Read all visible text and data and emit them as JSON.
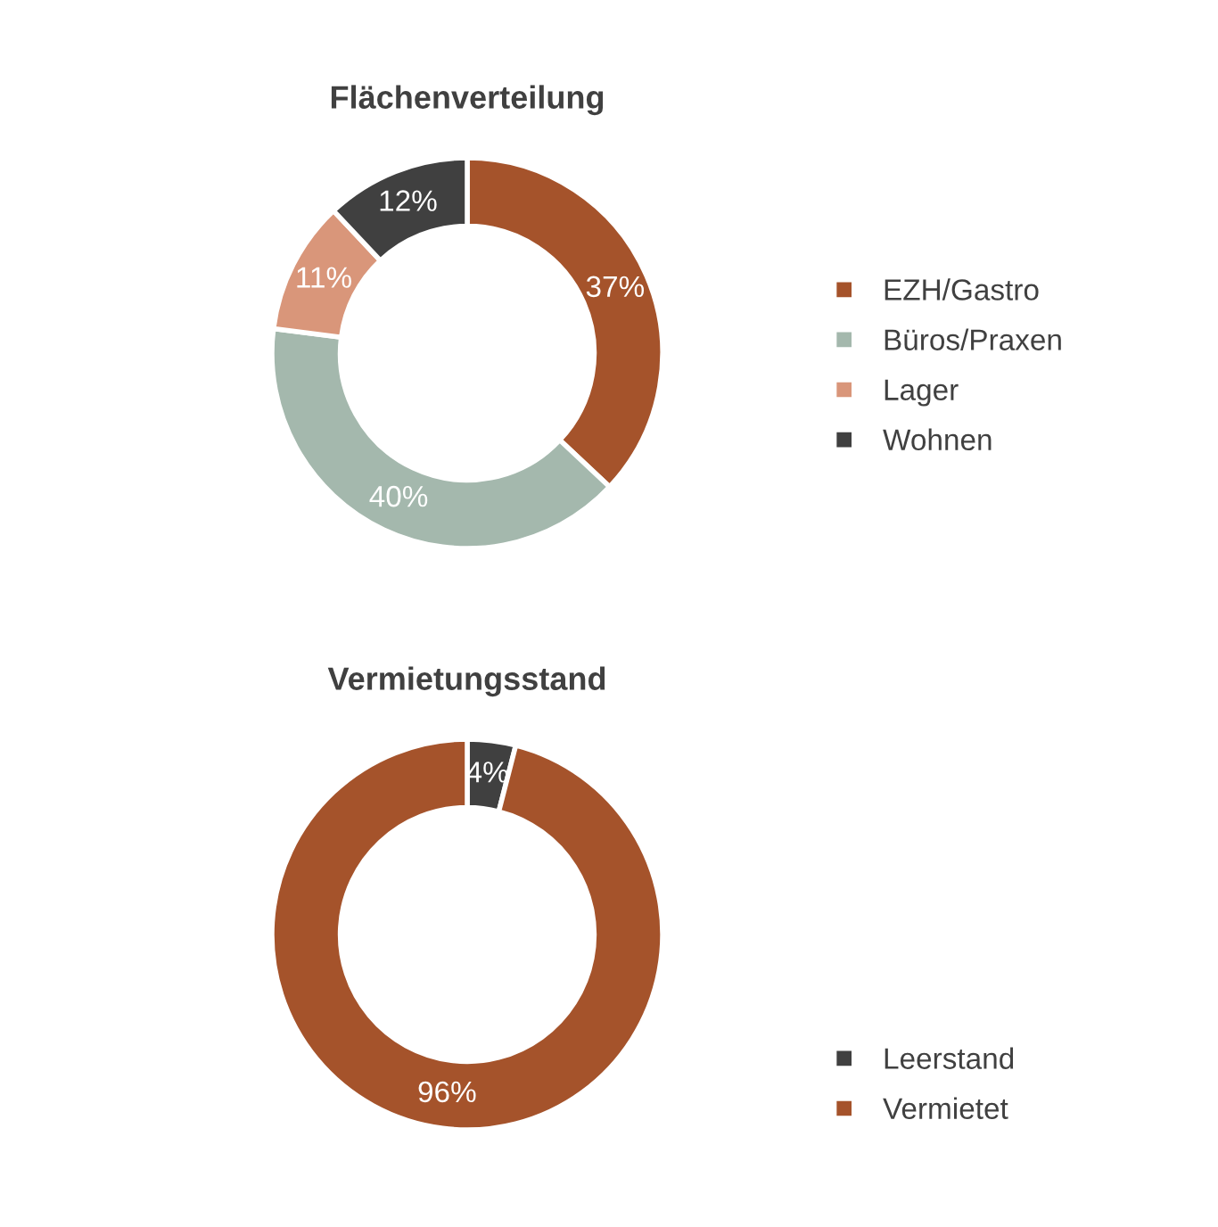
{
  "chart_data": [
    {
      "type": "donut",
      "title": "Flächenverteilung",
      "categories": [
        "EZH/Gastro",
        "Büros/Praxen",
        "Lager",
        "Wohnen"
      ],
      "values": [
        37,
        40,
        11,
        12
      ],
      "colors": [
        "#a5532b",
        "#a4b8ad",
        "#d9967a",
        "#404040"
      ],
      "value_labels": [
        "37%",
        "40%",
        "11%",
        "12%"
      ],
      "legend": "right"
    },
    {
      "type": "donut",
      "title": "Vermietungsstand",
      "categories": [
        "Leerstand",
        "Vermietet"
      ],
      "values": [
        4,
        96
      ],
      "colors": [
        "#404040",
        "#a5532b"
      ],
      "value_labels": [
        "4%",
        "96%"
      ],
      "legend": "right"
    }
  ]
}
